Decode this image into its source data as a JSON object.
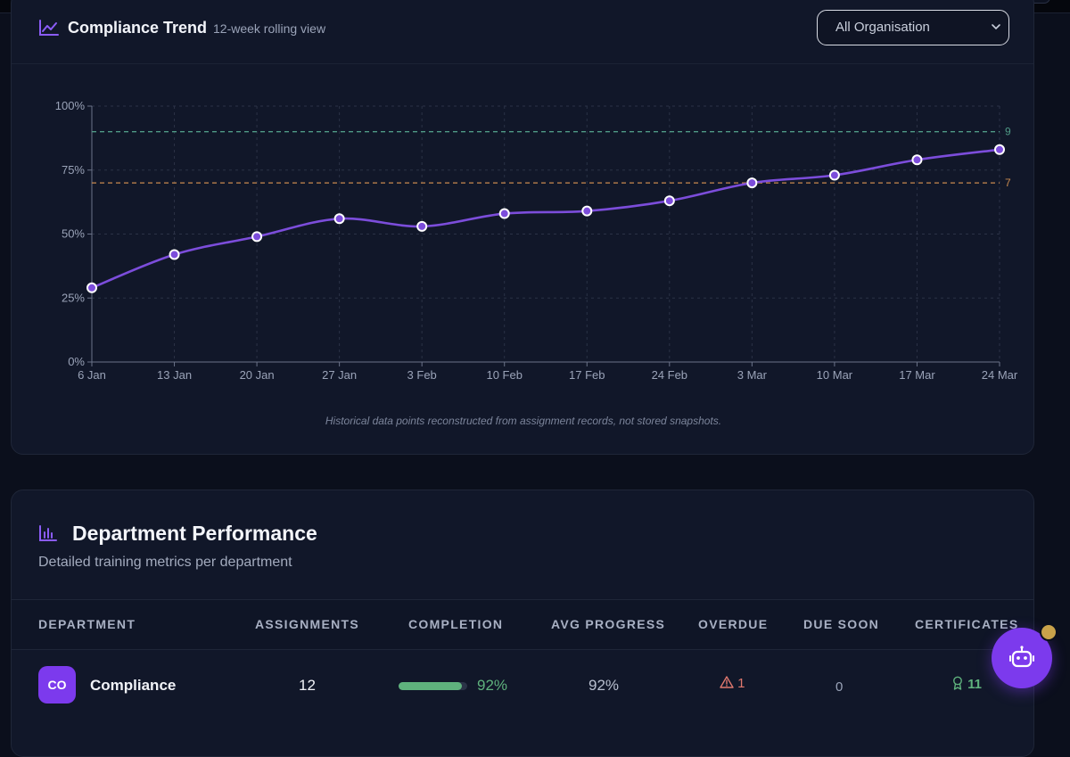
{
  "trend": {
    "title": "Compliance Trend",
    "subtitle": "12-week rolling view",
    "select_value": "All Organisation",
    "footnote": "Historical data points reconstructed from assignment records, not stored snapshots."
  },
  "chart_data": {
    "type": "line",
    "x": [
      "6 Jan",
      "13 Jan",
      "20 Jan",
      "27 Jan",
      "3 Feb",
      "10 Feb",
      "17 Feb",
      "24 Feb",
      "3 Mar",
      "10 Mar",
      "17 Mar",
      "24 Mar"
    ],
    "series": [
      {
        "values": [
          29,
          42,
          49,
          56,
          53,
          58,
          59,
          63,
          70,
          73,
          79,
          83
        ],
        "color": "#7c4ddb"
      }
    ],
    "ylim": [
      0,
      100
    ],
    "yticks": [
      0,
      25,
      50,
      75,
      100
    ],
    "ytick_labels": [
      "0%",
      "25%",
      "50%",
      "75%",
      "100%"
    ],
    "reference_lines": [
      {
        "value": 90,
        "label": "9",
        "color": "#4f9a86"
      },
      {
        "value": 70,
        "label": "7",
        "color": "#c98a4f"
      }
    ],
    "grid": true
  },
  "dept": {
    "title": "Department Performance",
    "subtitle": "Detailed training metrics per department",
    "columns": [
      "DEPARTMENT",
      "ASSIGNMENTS",
      "COMPLETION",
      "AVG PROGRESS",
      "OVERDUE",
      "DUE SOON",
      "CERTIFICATES"
    ],
    "rows": [
      {
        "initials": "CO",
        "name": "Compliance",
        "assignments": "12",
        "completion": "92%",
        "completion_fraction": 0.92,
        "avg_progress": "92%",
        "overdue": "1",
        "due_soon": "0",
        "certificates": "11"
      }
    ]
  },
  "colors": {
    "accent": "#7c3aed",
    "success": "#5fb27d",
    "danger": "#e0786e"
  }
}
